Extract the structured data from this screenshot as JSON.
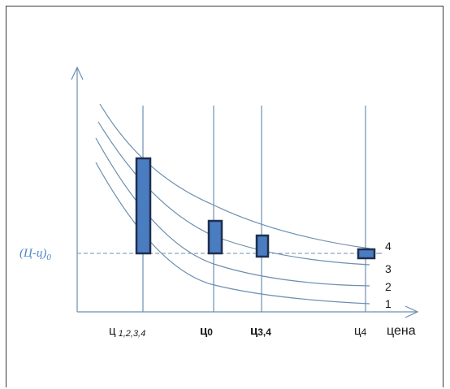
{
  "y_label_main": "(Ц-ц)",
  "y_label_sub": "0",
  "x_axis_label": "цена",
  "x_ticks": [
    {
      "main": "ц",
      "sub": "1,2,3,4"
    },
    {
      "main": "ц",
      "sub": "0"
    },
    {
      "main": "ц",
      "sub": "3,4"
    },
    {
      "main": "ц",
      "sub": "4"
    }
  ],
  "curve_labels": [
    "4",
    "3",
    "2",
    "1"
  ],
  "colors": {
    "curve": "#6d8fb0",
    "bar_fill": "#4a7cc0",
    "bar_stroke": "#1f2f4f",
    "y_label": "#4a86c8"
  }
}
